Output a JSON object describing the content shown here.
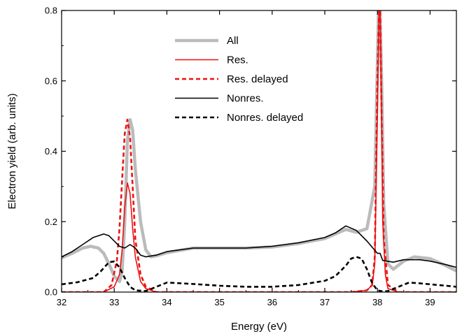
{
  "chart_data": {
    "type": "line",
    "xlabel": "Energy (eV)",
    "ylabel": "Electron yield (arb. units)",
    "xlim": [
      32,
      39.5
    ],
    "ylim": [
      0,
      0.8
    ],
    "x_ticks": [
      "32",
      "33",
      "34",
      "35",
      "36",
      "37",
      "38",
      "39"
    ],
    "y_ticks": [
      "0.0",
      "0.2",
      "0.4",
      "0.6",
      "0.8"
    ],
    "grid": false,
    "legend_position": "top-center",
    "series": [
      {
        "name": "All",
        "color": "#bbbbbb",
        "style": "solid-thick",
        "x": [
          32.0,
          32.2,
          32.4,
          32.55,
          32.7,
          32.8,
          32.9,
          33.0,
          33.1,
          33.15,
          33.2,
          33.25,
          33.3,
          33.35,
          33.4,
          33.5,
          33.6,
          33.7,
          33.8,
          34.0,
          34.5,
          35.0,
          35.5,
          36.0,
          36.5,
          37.0,
          37.2,
          37.4,
          37.6,
          37.8,
          37.95,
          38.02,
          38.05,
          38.08,
          38.12,
          38.2,
          38.3,
          38.5,
          38.7,
          39.0,
          39.3,
          39.5
        ],
        "y": [
          0.097,
          0.11,
          0.125,
          0.13,
          0.125,
          0.11,
          0.08,
          0.045,
          0.03,
          0.06,
          0.2,
          0.43,
          0.49,
          0.46,
          0.35,
          0.2,
          0.12,
          0.1,
          0.103,
          0.112,
          0.125,
          0.125,
          0.125,
          0.128,
          0.138,
          0.152,
          0.165,
          0.178,
          0.17,
          0.18,
          0.3,
          0.8,
          0.8,
          0.6,
          0.25,
          0.08,
          0.065,
          0.088,
          0.1,
          0.095,
          0.075,
          0.06
        ]
      },
      {
        "name": "Res.",
        "color": "#ee1111",
        "style": "solid",
        "x": [
          32.0,
          32.8,
          33.0,
          33.1,
          33.15,
          33.2,
          33.25,
          33.3,
          33.35,
          33.4,
          33.5,
          33.6,
          33.8,
          34.5,
          37.5,
          37.8,
          37.9,
          37.95,
          38.0,
          38.03,
          38.05,
          38.07,
          38.1,
          38.15,
          38.2,
          38.4,
          39.5
        ],
        "y": [
          0.0,
          0.0,
          0.015,
          0.05,
          0.12,
          0.24,
          0.31,
          0.28,
          0.18,
          0.1,
          0.03,
          0.01,
          0.0,
          0.0,
          0.0,
          0.005,
          0.02,
          0.08,
          0.5,
          0.8,
          0.8,
          0.6,
          0.2,
          0.05,
          0.01,
          0.0,
          0.0
        ]
      },
      {
        "name": "Res. delayed",
        "color": "#ee1111",
        "style": "dashed",
        "x": [
          32.0,
          32.8,
          32.95,
          33.05,
          33.1,
          33.15,
          33.2,
          33.25,
          33.3,
          33.35,
          33.4,
          33.5,
          33.6,
          33.8,
          34.5,
          37.5,
          37.8,
          37.9,
          37.95,
          38.0,
          38.03,
          38.05,
          38.08,
          38.12,
          38.2,
          38.4,
          39.5
        ],
        "y": [
          0.0,
          0.0,
          0.02,
          0.09,
          0.18,
          0.32,
          0.45,
          0.49,
          0.44,
          0.3,
          0.15,
          0.05,
          0.015,
          0.0,
          0.0,
          0.0,
          0.005,
          0.02,
          0.1,
          0.6,
          0.8,
          0.8,
          0.5,
          0.15,
          0.02,
          0.0,
          0.0
        ]
      },
      {
        "name": "Nonres.",
        "color": "#000000",
        "style": "solid",
        "x": [
          32.0,
          32.2,
          32.4,
          32.6,
          32.8,
          32.9,
          33.0,
          33.1,
          33.2,
          33.3,
          33.4,
          33.5,
          33.6,
          33.8,
          34.0,
          34.5,
          35.0,
          35.5,
          36.0,
          36.5,
          37.0,
          37.2,
          37.4,
          37.6,
          37.8,
          38.0,
          38.05,
          38.1,
          38.3,
          38.5,
          38.8,
          39.0,
          39.3,
          39.5
        ],
        "y": [
          0.1,
          0.115,
          0.135,
          0.155,
          0.165,
          0.16,
          0.145,
          0.13,
          0.125,
          0.135,
          0.125,
          0.105,
          0.1,
          0.105,
          0.115,
          0.125,
          0.125,
          0.125,
          0.13,
          0.14,
          0.155,
          0.168,
          0.188,
          0.175,
          0.145,
          0.11,
          0.11,
          0.09,
          0.085,
          0.092,
          0.092,
          0.088,
          0.078,
          0.07
        ]
      },
      {
        "name": "Nonres. delayed",
        "color": "#000000",
        "style": "dashed",
        "x": [
          32.0,
          32.3,
          32.6,
          32.75,
          32.9,
          33.0,
          33.1,
          33.2,
          33.3,
          33.4,
          33.6,
          33.8,
          34.0,
          34.5,
          35.0,
          35.5,
          36.0,
          36.5,
          37.0,
          37.2,
          37.4,
          37.5,
          37.6,
          37.7,
          37.8,
          37.9,
          38.0,
          38.1,
          38.2,
          38.4,
          38.6,
          38.8,
          39.0,
          39.3,
          39.5
        ],
        "y": [
          0.022,
          0.028,
          0.04,
          0.06,
          0.085,
          0.087,
          0.07,
          0.04,
          0.015,
          0.005,
          0.003,
          0.015,
          0.027,
          0.023,
          0.018,
          0.015,
          0.015,
          0.02,
          0.032,
          0.045,
          0.075,
          0.095,
          0.1,
          0.095,
          0.065,
          0.025,
          0.005,
          0.002,
          0.003,
          0.015,
          0.027,
          0.025,
          0.022,
          0.018,
          0.015
        ]
      }
    ]
  }
}
